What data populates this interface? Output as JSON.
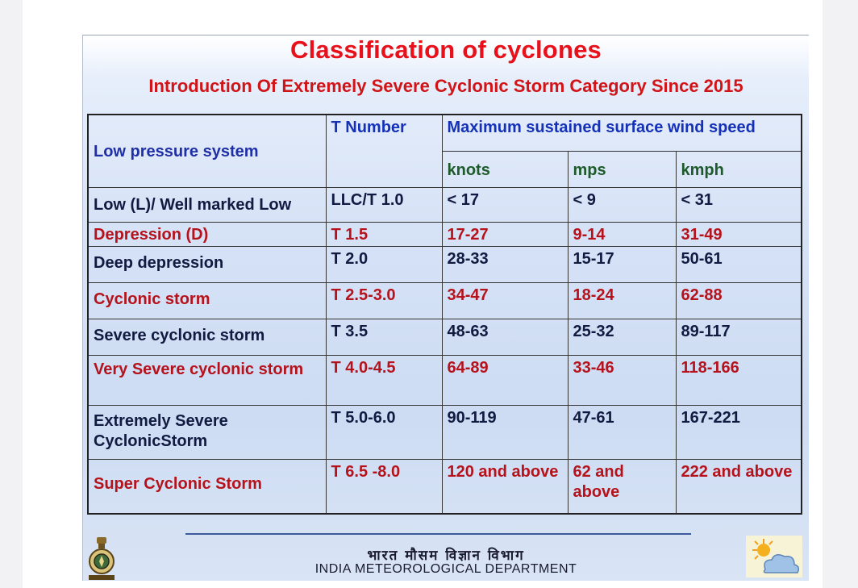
{
  "slide": {
    "title": "Classification of cyclones",
    "subtitle": "Introduction Of Extremely Severe Cyclonic Storm Category Since 2015"
  },
  "table": {
    "header": {
      "system": "Low pressure system",
      "t_number": "T Number",
      "wind_speed": "Maximum sustained surface wind speed",
      "knots": "knots",
      "mps": "mps",
      "kmph": "kmph"
    },
    "rows": [
      {
        "system": "Low (L)/ Well marked Low",
        "t": "LLC/T 1.0",
        "knots": "< 17",
        "mps": "< 9",
        "kmph": "< 31"
      },
      {
        "system": "Depression (D)",
        "t": "T 1.5",
        "knots": "17-27",
        "mps": "9-14",
        "kmph": "31-49"
      },
      {
        "system": "Deep depression",
        "t": "T 2.0",
        "knots": "28-33",
        "mps": "15-17",
        "kmph": "50-61"
      },
      {
        "system": "Cyclonic storm",
        "t": "T 2.5-3.0",
        "knots": "34-47",
        "mps": "18-24",
        "kmph": "62-88"
      },
      {
        "system": "Severe cyclonic storm",
        "t": "T 3.5",
        "knots": "48-63",
        "mps": "25-32",
        "kmph": "89-117"
      },
      {
        "system": "Very Severe cyclonic storm",
        "t": "T 4.0-4.5",
        "knots": "64-89",
        "mps": "33-46",
        "kmph": "118-166"
      },
      {
        "system": "Extremely Severe CyclonicStorm",
        "t": "T 5.0-6.0",
        "knots": "90-119",
        "mps": "47-61",
        "kmph": "167-221"
      },
      {
        "system": "Super Cyclonic Storm",
        "t": "T 6.5 -8.0",
        "knots": "120 and above",
        "mps": "62 and above",
        "kmph": "222 and above"
      }
    ]
  },
  "footer": {
    "hindi": "भारत मौसम विज्ञान विभाग",
    "department": "INDIA METEOROLOGICAL DEPARTMENT",
    "emblem_icon": "imd-emblem-icon",
    "weather_icon": "sun-cloud-icon"
  },
  "colors": {
    "title_red": "#e8101a",
    "row_blue": "#1f2fa8",
    "row_red": "#b5121b",
    "header_blue": "#1431b8"
  }
}
